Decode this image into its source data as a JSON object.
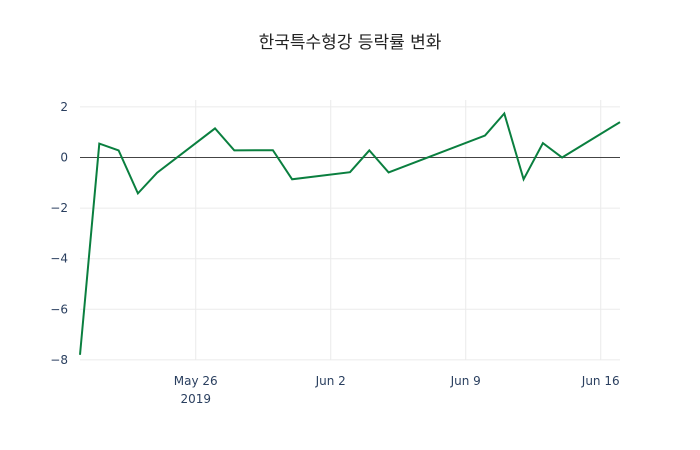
{
  "chart_data": {
    "type": "line",
    "title": "한국특수형강 등락률 변화",
    "xlabel": "",
    "ylabel": "",
    "x": [
      "2019-05-20",
      "2019-05-21",
      "2019-05-22",
      "2019-05-23",
      "2019-05-24",
      "2019-05-27",
      "2019-05-28",
      "2019-05-30",
      "2019-05-31",
      "2019-06-03",
      "2019-06-04",
      "2019-06-05",
      "2019-06-10",
      "2019-06-11",
      "2019-06-12",
      "2019-06-13",
      "2019-06-14",
      "2019-06-17"
    ],
    "series": [
      {
        "name": "등락률",
        "color": "#0a7f3f",
        "values": [
          -7.8,
          0.55,
          0.28,
          -1.42,
          -0.6,
          1.15,
          0.28,
          0.29,
          -0.86,
          -0.58,
          0.28,
          -0.59,
          0.87,
          1.74,
          -0.86,
          0.57,
          0.0,
          1.4
        ]
      }
    ],
    "ylim": [
      -8,
      2.3
    ],
    "yticks": [
      2,
      0,
      -2,
      -4,
      -6,
      -8
    ],
    "ytick_labels": [
      "2",
      "0",
      "−2",
      "−4",
      "−6",
      "−8"
    ],
    "xticks": [
      {
        "date": "2019-05-26",
        "label": "May 26",
        "sublabel": "2019"
      },
      {
        "date": "2019-06-02",
        "label": "Jun 2",
        "sublabel": ""
      },
      {
        "date": "2019-06-09",
        "label": "Jun 9",
        "sublabel": ""
      },
      {
        "date": "2019-06-16",
        "label": "Jun 16",
        "sublabel": ""
      }
    ],
    "xrange": [
      "2019-05-20",
      "2019-06-17"
    ],
    "grid": true,
    "zeroline": true,
    "legend": "none"
  },
  "colors": {
    "line": "#0a7f3f",
    "grid": "#ebebeb",
    "zeroline": "#444444",
    "tick_text": "#2a3f5f"
  }
}
